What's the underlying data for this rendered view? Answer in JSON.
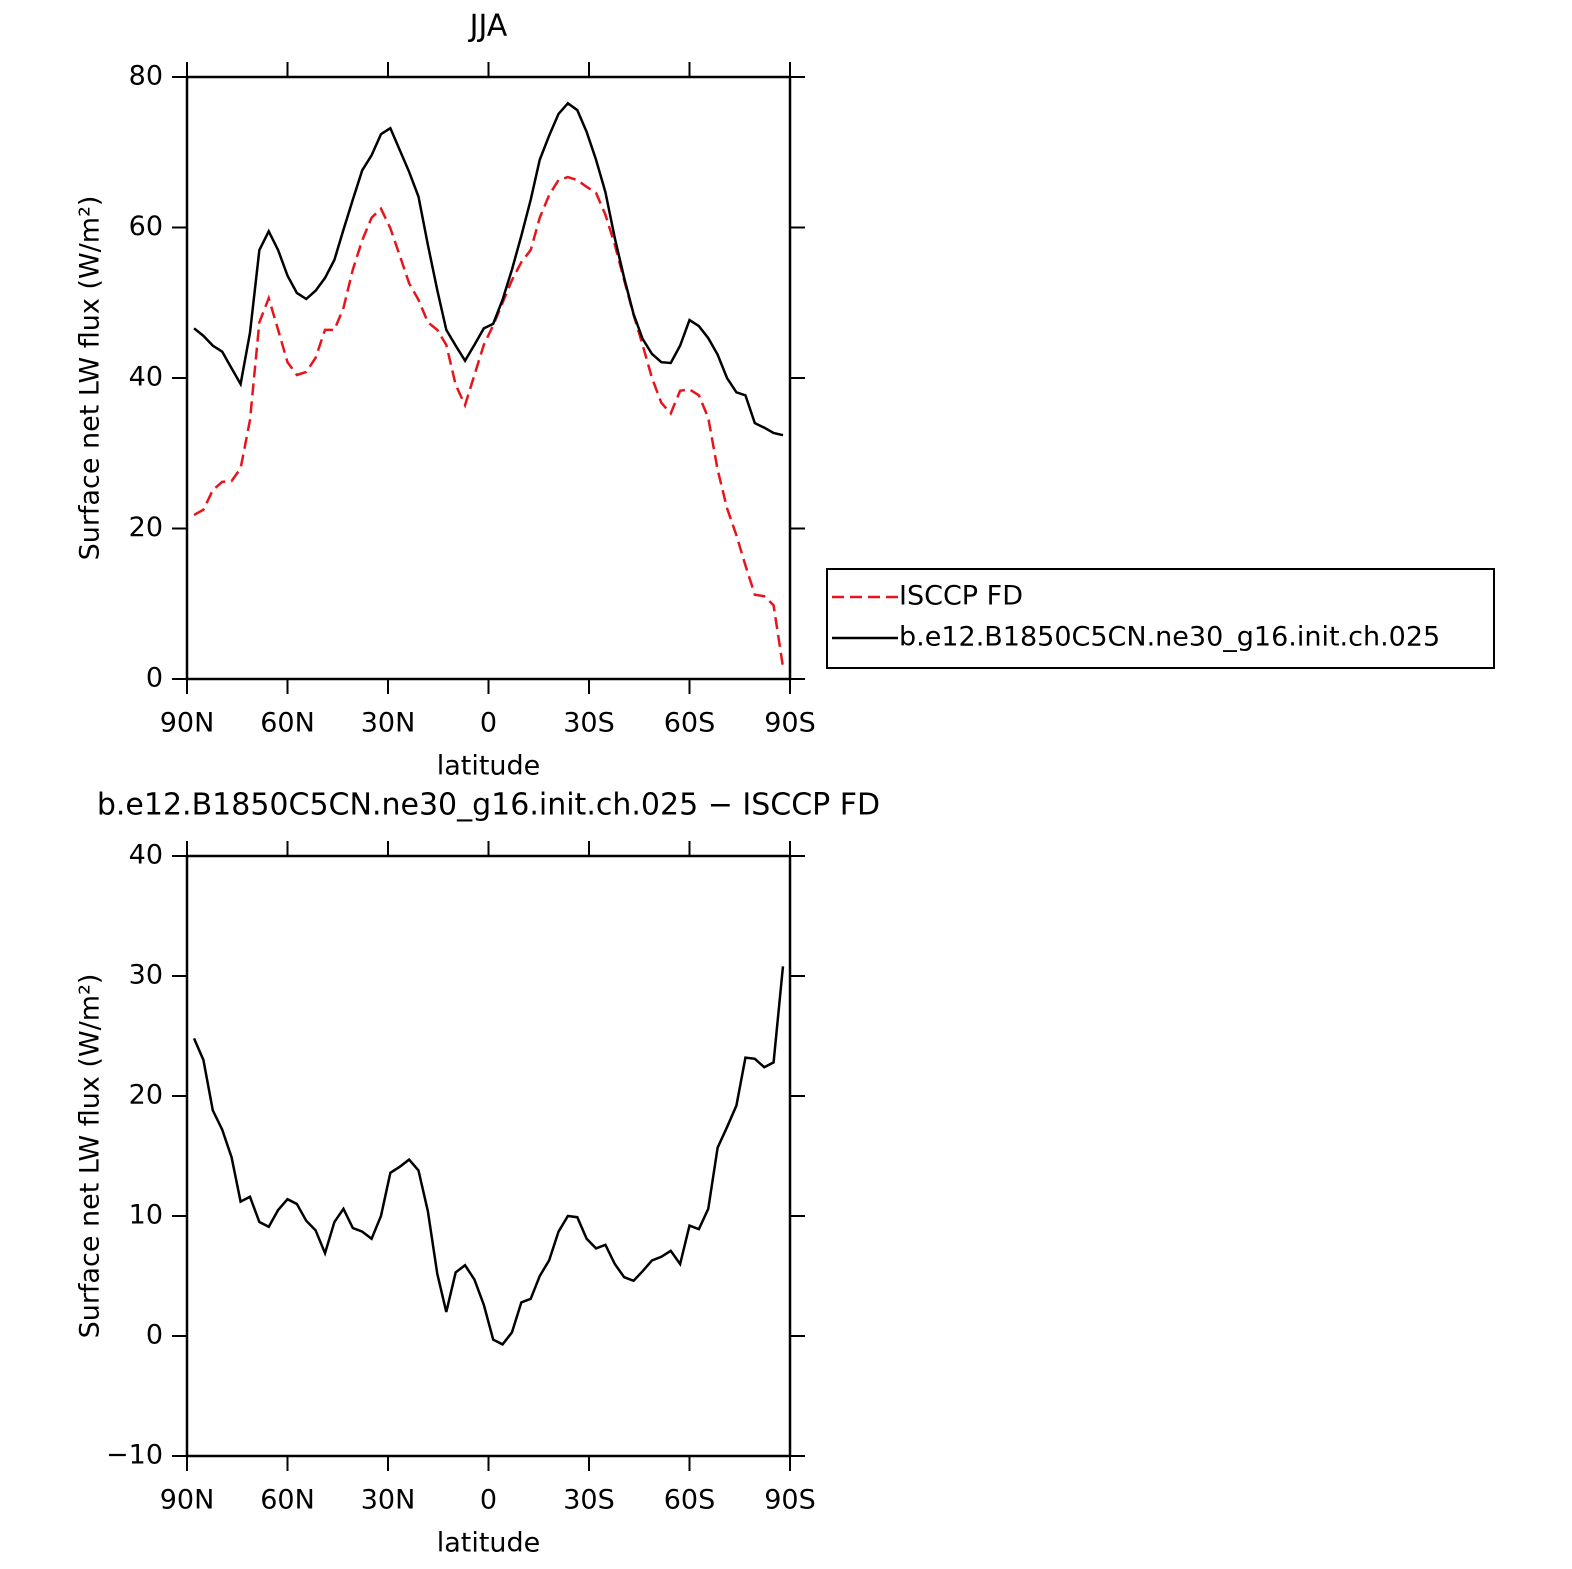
{
  "chart_data": [
    {
      "type": "line",
      "title": "JJA",
      "xlabel": "latitude",
      "ylabel": "Surface net LW flux (W/m²)",
      "x": [
        87.9,
        85.1,
        82.3,
        79.5,
        76.7,
        74.0,
        71.2,
        68.4,
        65.6,
        62.8,
        60.0,
        57.2,
        54.4,
        51.6,
        48.8,
        46.0,
        43.3,
        40.5,
        37.7,
        34.9,
        32.1,
        29.3,
        26.5,
        23.7,
        20.9,
        18.1,
        15.3,
        12.6,
        9.8,
        7.0,
        4.2,
        1.4,
        -1.4,
        -4.2,
        -7.0,
        -9.8,
        -12.6,
        -15.3,
        -18.1,
        -20.9,
        -23.7,
        -26.5,
        -29.3,
        -32.1,
        -34.9,
        -37.7,
        -40.5,
        -43.3,
        -46.0,
        -48.8,
        -51.6,
        -54.4,
        -57.2,
        -60.0,
        -62.8,
        -65.6,
        -68.4,
        -71.2,
        -74.0,
        -76.7,
        -79.5,
        -82.3,
        -85.1,
        -87.9
      ],
      "series": [
        {
          "name": "ISCCP FD",
          "color": "#e8141c",
          "dash": true,
          "values": [
            21.8,
            22.5,
            25.1,
            26.2,
            26.3,
            28.0,
            34.4,
            47.4,
            50.6,
            46.4,
            42.1,
            40.4,
            40.8,
            42.7,
            46.4,
            46.4,
            49.3,
            54.4,
            58.3,
            61.3,
            62.5,
            59.9,
            56.3,
            52.6,
            50.4,
            47.4,
            46.4,
            44.4,
            39.1,
            36.4,
            40.4,
            44.4,
            47.0,
            50.0,
            53.0,
            55.4,
            57.0,
            61.3,
            64.3,
            66.3,
            66.7,
            66.3,
            65.4,
            64.6,
            61.7,
            57.7,
            53.0,
            48.4,
            44.4,
            40.0,
            36.7,
            35.3,
            38.3,
            38.5,
            37.7,
            34.7,
            27.8,
            22.7,
            19.1,
            15.1,
            11.2,
            11.0,
            9.8,
            1.6
          ]
        },
        {
          "name": "b.e12.B1850C5CN.ne30_g16.init.ch.025",
          "color": "#000000",
          "dash": false,
          "values": [
            46.6,
            45.6,
            44.3,
            43.5,
            41.3,
            39.2,
            46.0,
            57.0,
            59.5,
            57.0,
            53.6,
            51.3,
            50.5,
            51.6,
            53.3,
            55.7,
            59.7,
            63.7,
            67.6,
            69.6,
            72.4,
            73.2,
            70.3,
            67.4,
            64.1,
            57.7,
            51.7,
            46.4,
            44.3,
            42.3,
            44.4,
            46.6,
            47.2,
            50.4,
            54.4,
            58.9,
            63.7,
            69.0,
            72.2,
            75.1,
            76.5,
            75.6,
            72.7,
            69.0,
            64.7,
            58.6,
            53.3,
            48.5,
            45.2,
            43.2,
            42.1,
            42.0,
            44.3,
            47.7,
            46.9,
            45.3,
            43.1,
            40.0,
            38.1,
            37.7,
            34.0,
            33.4,
            32.7,
            32.4
          ]
        }
      ],
      "xlim": [
        90,
        -90
      ],
      "xticks": [
        {
          "value": 90,
          "label": "90N"
        },
        {
          "value": 60,
          "label": "60N"
        },
        {
          "value": 30,
          "label": "30N"
        },
        0,
        {
          "value": -30,
          "label": "30S"
        },
        {
          "value": -60,
          "label": "60S"
        },
        {
          "value": -90,
          "label": "90S"
        }
      ],
      "ylim": [
        0,
        80
      ],
      "yticks": [
        0,
        20,
        40,
        60,
        80
      ],
      "legend": "right"
    },
    {
      "type": "line",
      "title": "b.e12.B1850C5CN.ne30_g16.init.ch.025 − ISCCP FD",
      "xlabel": "latitude",
      "ylabel": "Surface net LW flux (W/m²)",
      "x": [
        87.9,
        85.1,
        82.3,
        79.5,
        76.7,
        74.0,
        71.2,
        68.4,
        65.6,
        62.8,
        60.0,
        57.2,
        54.4,
        51.6,
        48.8,
        46.0,
        43.3,
        40.5,
        37.7,
        34.9,
        32.1,
        29.3,
        26.5,
        23.7,
        20.9,
        18.1,
        15.3,
        12.6,
        9.8,
        7.0,
        4.2,
        1.4,
        -1.4,
        -4.2,
        -7.0,
        -9.8,
        -12.6,
        -15.3,
        -18.1,
        -20.9,
        -23.7,
        -26.5,
        -29.3,
        -32.1,
        -34.9,
        -37.7,
        -40.5,
        -43.3,
        -46.0,
        -48.8,
        -51.6,
        -54.4,
        -57.2,
        -60.0,
        -62.8,
        -65.6,
        -68.4,
        -71.2,
        -74.0,
        -76.7,
        -79.5,
        -82.3,
        -85.1,
        -87.9
      ],
      "series": [
        {
          "color": "#000000",
          "dash": false,
          "values": [
            24.8,
            23.0,
            18.8,
            17.2,
            14.9,
            11.2,
            11.6,
            9.5,
            9.1,
            10.5,
            11.4,
            11.0,
            9.6,
            8.8,
            6.9,
            9.5,
            10.6,
            9.0,
            8.7,
            8.1,
            10.0,
            13.6,
            14.1,
            14.7,
            13.8,
            10.4,
            5.2,
            2.0,
            5.3,
            5.9,
            4.7,
            2.6,
            -0.3,
            -0.7,
            0.3,
            2.8,
            3.1,
            5.0,
            6.3,
            8.7,
            10.0,
            9.9,
            8.1,
            7.3,
            7.6,
            6.0,
            4.9,
            4.6,
            5.4,
            6.3,
            6.6,
            7.1,
            6.0,
            9.2,
            8.9,
            10.6,
            15.7,
            17.4,
            19.2,
            23.2,
            23.1,
            22.4,
            22.8,
            30.8
          ]
        }
      ],
      "xlim": [
        90,
        -90
      ],
      "xticks": [
        {
          "value": 90,
          "label": "90N"
        },
        {
          "value": 60,
          "label": "60N"
        },
        {
          "value": 30,
          "label": "30N"
        },
        0,
        {
          "value": -30,
          "label": "30S"
        },
        {
          "value": -60,
          "label": "60S"
        },
        {
          "value": -90,
          "label": "90S"
        }
      ],
      "ylim": [
        -10,
        40
      ],
      "yticks": [
        {
          "value": -10,
          "label": "−10"
        },
        0,
        10,
        20,
        30,
        40
      ]
    }
  ]
}
